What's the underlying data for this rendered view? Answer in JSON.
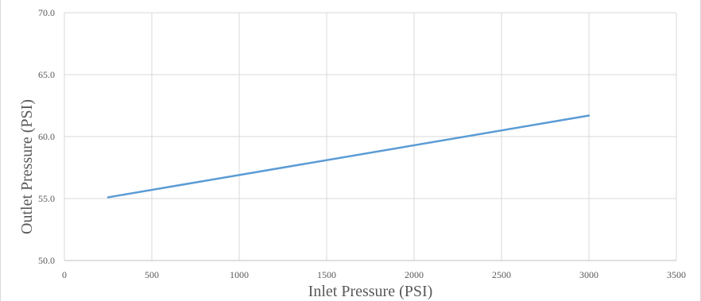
{
  "chart_data": {
    "type": "line",
    "title": "",
    "xlabel": "Inlet Pressure (PSI)",
    "ylabel": "Outlet Pressure (PSI)",
    "xlim": [
      0,
      3500
    ],
    "ylim": [
      50.0,
      70.0
    ],
    "x_ticks": [
      "0",
      "500",
      "1000",
      "1500",
      "2000",
      "2500",
      "3000",
      "3500"
    ],
    "y_ticks": [
      "50.0",
      "55.0",
      "60.0",
      "65.0",
      "70.0"
    ],
    "grid": true,
    "legend": "none",
    "series": [
      {
        "color": "#5b9bd5",
        "x": [
          250,
          3000
        ],
        "y": [
          55.1,
          61.7
        ]
      }
    ]
  }
}
